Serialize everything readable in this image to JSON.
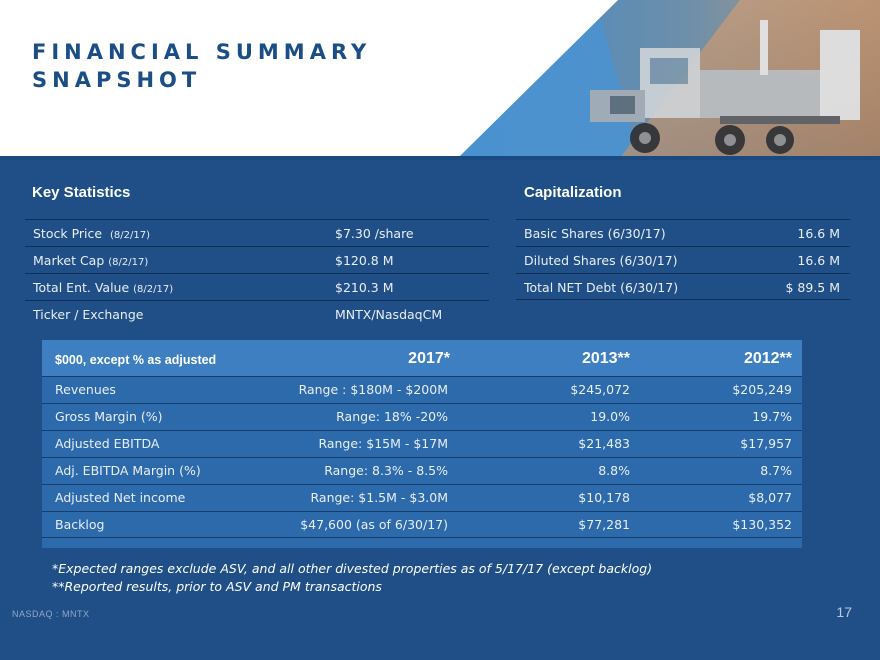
{
  "header": {
    "title_line1": "FINANCIAL SUMMARY",
    "title_line2": "SNAPSHOT"
  },
  "colors": {
    "background": "#1f4f86",
    "title": "#1b4d87",
    "table_bg": "#2c6aac",
    "table_header_bg": "#3e7fc2"
  },
  "key_statistics": {
    "heading": "Key Statistics",
    "rows": [
      {
        "label": "Stock Price",
        "date": "(8/2/17)",
        "value": "$7.30 /share"
      },
      {
        "label": "Market Cap",
        "date": "(8/2/17)",
        "value": "$120.8  M"
      },
      {
        "label": "Total Ent. Value",
        "date": "(8/2/17)",
        "value": "$210.3 M"
      },
      {
        "label": "Ticker / Exchange",
        "date": "",
        "value": "MNTX/NasdaqCM"
      }
    ]
  },
  "capitalization": {
    "heading": "Capitalization",
    "rows": [
      {
        "label": "Basic Shares (6/30/17)",
        "value": "16.6 M"
      },
      {
        "label": "Diluted Shares  (6/30/17)",
        "value": "16.6 M"
      },
      {
        "label": "Total NET Debt (6/30/17)",
        "value": "$ 89.5 M"
      }
    ]
  },
  "financials": {
    "units_label": "$000,  except % as adjusted",
    "years": [
      "2017*",
      "2013**",
      "2012**"
    ],
    "rows": [
      {
        "metric": "Revenues",
        "values": [
          "Range : $180M - $200M",
          "$245,072",
          "$205,249"
        ]
      },
      {
        "metric": "Gross Margin (%)",
        "values": [
          "Range: 18% -20%",
          "19.0%",
          "19.7%"
        ]
      },
      {
        "metric": "Adjusted EBITDA",
        "values": [
          "Range: $15M - $17M",
          "$21,483",
          "$17,957"
        ]
      },
      {
        "metric": "Adj. EBITDA Margin (%)",
        "values": [
          "Range: 8.3% - 8.5%",
          "8.8%",
          "8.7%"
        ]
      },
      {
        "metric": "Adjusted Net income",
        "values": [
          "Range: $1.5M - $3.0M",
          "$10,178",
          "$8,077"
        ]
      },
      {
        "metric": "Backlog",
        "values": [
          "$47,600  (as of 6/30/17)",
          "$77,281",
          "$130,352"
        ]
      }
    ]
  },
  "notes": [
    "*Expected ranges exclude ASV, and all other divested properties as of 5/17/17 (except backlog)",
    "**Reported results, prior to ASV and PM transactions"
  ],
  "footer": {
    "ticker": "NASDAQ : MNTX",
    "page_number": "17"
  }
}
